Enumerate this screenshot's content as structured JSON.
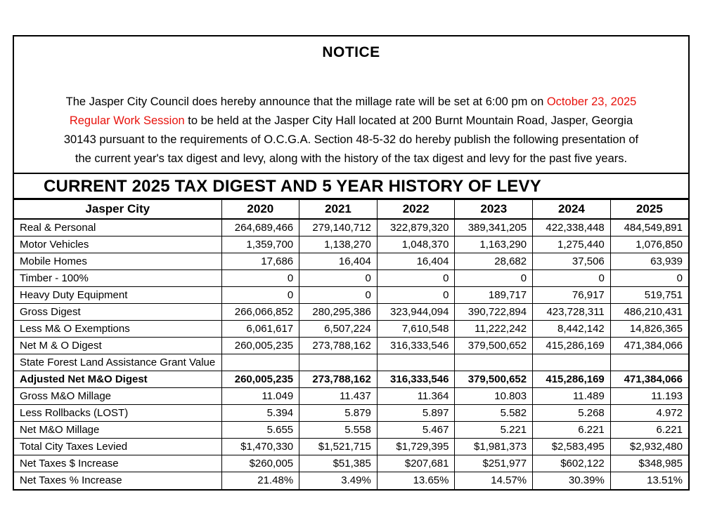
{
  "notice": {
    "title": "NOTICE",
    "accent_color": "#e8120c",
    "paragraph_lines": [
      [
        {
          "text": "The Jasper City Council does hereby announce that the millage rate will be set at 6:00 pm on ",
          "red": false
        },
        {
          "text": "October 23, 2025",
          "red": true
        }
      ],
      [
        {
          "text": "Regular Work Session",
          "red": true
        },
        {
          "text": " to be held at the Jasper City Hall located at 200 Burnt Mountain Road, Jasper, Georgia",
          "red": false
        }
      ],
      [
        {
          "text": "30143 pursuant to the requirements of O.C.G.A. Section 48-5-32 do hereby publish the following presentation of",
          "red": false
        }
      ],
      [
        {
          "text": "the current year's tax digest and levy, along with the history of the tax digest and levy for the past five years.",
          "red": false
        }
      ]
    ]
  },
  "digest": {
    "title": "CURRENT 2025 TAX DIGEST AND 5 YEAR HISTORY OF LEVY",
    "table": {
      "header": [
        "Jasper City",
        "2020",
        "2021",
        "2022",
        "2023",
        "2024",
        "2025"
      ],
      "rows": [
        {
          "label": "Real & Personal",
          "bold": false,
          "values": [
            "264,689,466",
            "279,140,712",
            "322,879,320",
            "389,341,205",
            "422,338,448",
            "484,549,891"
          ]
        },
        {
          "label": "Motor Vehicles",
          "bold": false,
          "values": [
            "1,359,700",
            "1,138,270",
            "1,048,370",
            "1,163,290",
            "1,275,440",
            "1,076,850"
          ]
        },
        {
          "label": "Mobile Homes",
          "bold": false,
          "values": [
            "17,686",
            "16,404",
            "16,404",
            "28,682",
            "37,506",
            "63,939"
          ]
        },
        {
          "label": "Timber - 100%",
          "bold": false,
          "values": [
            "0",
            "0",
            "0",
            "0",
            "0",
            "0"
          ]
        },
        {
          "label": "Heavy Duty Equipment",
          "bold": false,
          "values": [
            "0",
            "0",
            "0",
            "189,717",
            "76,917",
            "519,751"
          ]
        },
        {
          "label": "Gross Digest",
          "bold": false,
          "values": [
            "266,066,852",
            "280,295,386",
            "323,944,094",
            "390,722,894",
            "423,728,311",
            "486,210,431"
          ]
        },
        {
          "label": "Less M& O Exemptions",
          "bold": false,
          "values": [
            "6,061,617",
            "6,507,224",
            "7,610,548",
            "11,222,242",
            "8,442,142",
            "14,826,365"
          ]
        },
        {
          "label": "Net M & O Digest",
          "bold": false,
          "values": [
            "260,005,235",
            "273,788,162",
            "316,333,546",
            "379,500,652",
            "415,286,169",
            "471,384,066"
          ]
        },
        {
          "label": "State Forest Land Assistance Grant Value",
          "bold": false,
          "values": [
            "",
            "",
            "",
            "",
            "",
            ""
          ]
        },
        {
          "label": "Adjusted Net M&O Digest",
          "bold": true,
          "values": [
            "260,005,235",
            "273,788,162",
            "316,333,546",
            "379,500,652",
            "415,286,169",
            "471,384,066"
          ]
        },
        {
          "label": "Gross M&O Millage",
          "bold": false,
          "values": [
            "11.049",
            "11.437",
            "11.364",
            "10.803",
            "11.489",
            "11.193"
          ]
        },
        {
          "label": "Less Rollbacks (LOST)",
          "bold": false,
          "values": [
            "5.394",
            "5.879",
            "5.897",
            "5.582",
            "5.268",
            "4.972"
          ]
        },
        {
          "label": "Net M&O Millage",
          "bold": false,
          "values": [
            "5.655",
            "5.558",
            "5.467",
            "5.221",
            "6.221",
            "6.221"
          ]
        },
        {
          "label": "Total City Taxes Levied",
          "bold": false,
          "values": [
            "$1,470,330",
            "$1,521,715",
            "$1,729,395",
            "$1,981,373",
            "$2,583,495",
            "$2,932,480"
          ]
        },
        {
          "label": "Net Taxes $ Increase",
          "bold": false,
          "values": [
            "$260,005",
            "$51,385",
            "$207,681",
            "$251,977",
            "$602,122",
            "$348,985"
          ]
        },
        {
          "label": "Net Taxes % Increase",
          "bold": false,
          "values": [
            "21.48%",
            "3.49%",
            "13.65%",
            "14.57%",
            "30.39%",
            "13.51%"
          ]
        }
      ]
    }
  }
}
